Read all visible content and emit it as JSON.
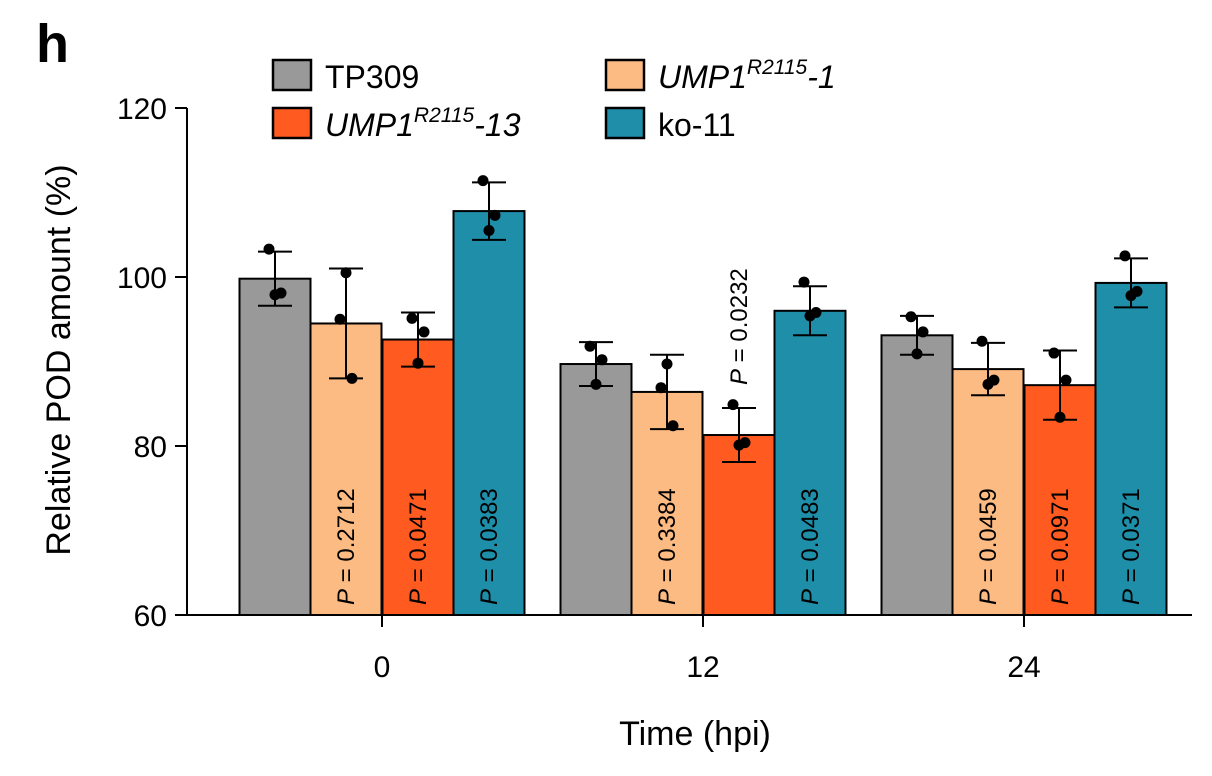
{
  "panel_label": "h",
  "colors": {
    "TP309": "#999999",
    "UMP1-1": "#fdbb84",
    "UMP1-13": "#ff5a1f",
    "ko-11": "#1f8ea8",
    "outline": "#000000"
  },
  "legend": [
    {
      "key": "TP309",
      "italic": false,
      "base": "TP309",
      "sup": "",
      "suffix": ""
    },
    {
      "key": "UMP1-13",
      "italic": true,
      "base": "UMP1",
      "sup": "R2115",
      "suffix": "-13"
    },
    {
      "key": "UMP1-1",
      "italic": true,
      "base": "UMP1",
      "sup": "R2115",
      "suffix": "-1"
    },
    {
      "key": "ko-11",
      "italic": false,
      "base": "ko-11",
      "sup": "",
      "suffix": ""
    }
  ],
  "p_symbol": "P",
  "p_separator": " = ",
  "chart_data": {
    "type": "bar",
    "title": "",
    "xlabel": "Time (hpi)",
    "ylabel": "Relative POD amount (%)",
    "ylim": [
      60,
      120
    ],
    "yticks": [
      60,
      80,
      100,
      120
    ],
    "categories": [
      "0",
      "12",
      "24"
    ],
    "grid": false,
    "legend_position": "top",
    "series": [
      {
        "key": "TP309",
        "values": [
          99.8,
          89.7,
          93.1
        ],
        "errors": [
          3.2,
          2.6,
          2.3
        ],
        "points": [
          [
            103.3,
            98.1,
            97.9
          ],
          [
            91.8,
            90.2,
            87.3
          ],
          [
            95.3,
            93.5,
            90.9
          ]
        ],
        "pvalues": [
          "",
          "",
          ""
        ]
      },
      {
        "key": "UMP1-1",
        "values": [
          94.5,
          86.4,
          89.1
        ],
        "errors": [
          6.5,
          4.4,
          3.1
        ],
        "points": [
          [
            95.0,
            88.0,
            100.5
          ],
          [
            86.9,
            82.4,
            89.7
          ],
          [
            92.4,
            87.8,
            87.3
          ]
        ],
        "pvalues": [
          "0.2712",
          "0.3384",
          "0.0459"
        ]
      },
      {
        "key": "UMP1-13",
        "values": [
          92.6,
          81.3,
          87.2
        ],
        "errors": [
          3.2,
          3.2,
          4.1
        ],
        "points": [
          [
            95.1,
            93.5,
            89.8
          ],
          [
            84.9,
            80.4,
            80.1
          ],
          [
            91.0,
            87.8,
            83.4
          ]
        ],
        "pvalues": [
          "0.0471",
          "0.0232",
          "0.0971"
        ]
      },
      {
        "key": "ko-11",
        "values": [
          107.8,
          96.0,
          99.3
        ],
        "errors": [
          3.4,
          2.9,
          2.9
        ],
        "points": [
          [
            111.4,
            107.3,
            105.5
          ],
          [
            99.4,
            95.8,
            95.4
          ],
          [
            102.5,
            98.3,
            97.8
          ]
        ],
        "pvalues": [
          "0.0383",
          "0.0483",
          "0.0371"
        ]
      }
    ]
  }
}
